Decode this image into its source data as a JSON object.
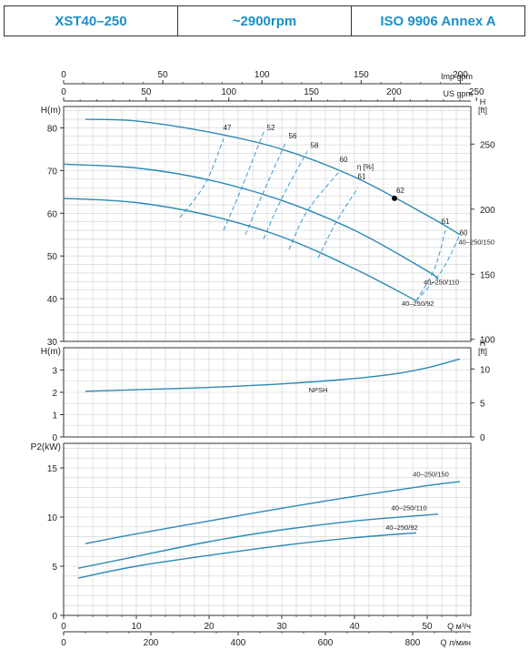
{
  "header": {
    "model": "XST40–250",
    "speed": "~2900rpm",
    "standard": "ISO 9906   Annex A"
  },
  "colors": {
    "curve": "#2a8ab6",
    "efficiency": "#3a9ad0",
    "grid": "#cfcfcf",
    "frame": "#333333",
    "header_text": "#1a8fc8"
  },
  "chart_data": [
    {
      "type": "line",
      "name": "head-curves",
      "ylabel": "H(m)",
      "ylabel_right": "H\n[ft]",
      "ylim": [
        30,
        85
      ],
      "yticks": [
        30,
        40,
        50,
        60,
        70,
        80
      ],
      "yticks_right": [
        100,
        150,
        200,
        250
      ],
      "xlim": [
        0,
        56
      ],
      "top_axes": [
        {
          "label": "Imp gpm",
          "ticks": [
            0,
            50,
            100,
            150,
            200
          ]
        },
        {
          "label": "US gpm",
          "ticks": [
            0,
            50,
            100,
            150,
            200,
            250
          ]
        }
      ],
      "efficiency_label": "η [%]",
      "best_efficiency_point": {
        "x": 45.5,
        "y": 63.5
      },
      "series": [
        {
          "name": "40–250/150",
          "x": [
            3,
            10,
            20,
            30,
            40,
            50,
            54.5
          ],
          "y": [
            82,
            81.6,
            79,
            75,
            68.5,
            59.5,
            55
          ]
        },
        {
          "name": "40–250/110",
          "x": [
            0,
            10,
            20,
            30,
            40,
            50,
            51.5
          ],
          "y": [
            71.5,
            70.6,
            67.8,
            63,
            56,
            46.5,
            44.5
          ]
        },
        {
          "name": "40–250/92",
          "x": [
            0,
            10,
            20,
            30,
            40,
            48.5
          ],
          "y": [
            63.5,
            62.5,
            59.5,
            54.5,
            47,
            39.5
          ]
        }
      ],
      "efficiency_curves": [
        {
          "label": "47",
          "points": [
            [
              16,
              59
            ],
            [
              19.5,
              67
            ],
            [
              22,
              77.5
            ]
          ]
        },
        {
          "label": "52",
          "points": [
            [
              22,
              56
            ],
            [
              24.5,
              66
            ],
            [
              27.5,
              79
            ]
          ]
        },
        {
          "label": "56",
          "points": [
            [
              25,
              55
            ],
            [
              27.5,
              65
            ],
            [
              30.5,
              76.5
            ]
          ]
        },
        {
          "label": "58",
          "points": [
            [
              27.5,
              54
            ],
            [
              30,
              63.5
            ],
            [
              33.5,
              74.5
            ]
          ]
        },
        {
          "label": "60",
          "points": [
            [
              31,
              51.5
            ],
            [
              33.5,
              60.5
            ],
            [
              38,
              70
            ]
          ]
        },
        {
          "label": "61",
          "points": [
            [
              35,
              49.5
            ],
            [
              37.5,
              58
            ],
            [
              40.5,
              66
            ]
          ]
        },
        {
          "label": "61",
          "points": [
            [
              48.5,
              39.5
            ],
            [
              51,
              47
            ],
            [
              52.5,
              56
            ]
          ]
        },
        {
          "label": "60",
          "points": [
            [
              48.5,
              39.5
            ],
            [
              52,
              46.5
            ],
            [
              54.5,
              55
            ]
          ]
        }
      ],
      "efficiency_label_points": [
        {
          "label": "47",
          "x": 22.5,
          "y": 79.5
        },
        {
          "label": "52",
          "x": 28.5,
          "y": 79.5
        },
        {
          "label": "56",
          "x": 31.5,
          "y": 77.5
        },
        {
          "label": "58",
          "x": 34.5,
          "y": 75.3
        },
        {
          "label": "60",
          "x": 38.5,
          "y": 72
        },
        {
          "label": "61",
          "x": 41,
          "y": 68
        },
        {
          "label": "62",
          "x": 46.3,
          "y": 64.7
        },
        {
          "label": "61",
          "x": 52.5,
          "y": 57.5
        },
        {
          "label": "60",
          "x": 55,
          "y": 54.8
        }
      ]
    },
    {
      "type": "line",
      "name": "npsh",
      "ylabel": "H(m)",
      "ylabel_right": "H\n[ft]",
      "ylim": [
        0,
        4
      ],
      "yticks": [
        0,
        1,
        2,
        3
      ],
      "yticks_right": [
        0,
        5,
        10
      ],
      "xlim": [
        0,
        56
      ],
      "series": [
        {
          "name": "NPSH",
          "x": [
            3,
            10,
            20,
            30,
            40,
            46,
            50,
            54.5
          ],
          "y": [
            2.05,
            2.12,
            2.22,
            2.38,
            2.62,
            2.85,
            3.1,
            3.5
          ]
        }
      ]
    },
    {
      "type": "line",
      "name": "power",
      "ylabel": "P2(kW)",
      "ylim": [
        0,
        17.5
      ],
      "yticks": [
        0,
        5,
        10,
        15
      ],
      "xlim": [
        0,
        56
      ],
      "xticks": [
        0,
        10,
        20,
        30,
        40,
        50
      ],
      "xlabel": "Q  м³/ч",
      "xticks2": [
        0,
        200,
        400,
        600,
        800
      ],
      "xlabel2": "Q  л/мин",
      "series": [
        {
          "name": "40–250/150",
          "x": [
            3,
            10,
            20,
            30,
            40,
            50,
            54.5
          ],
          "y": [
            7.3,
            8.3,
            9.6,
            10.9,
            12.1,
            13.2,
            13.6
          ]
        },
        {
          "name": "40–250/110",
          "x": [
            2,
            10,
            20,
            30,
            40,
            48,
            51.5
          ],
          "y": [
            4.8,
            6.0,
            7.5,
            8.7,
            9.6,
            10.1,
            10.3
          ]
        },
        {
          "name": "40–250/92",
          "x": [
            2,
            10,
            20,
            30,
            40,
            48.5
          ],
          "y": [
            3.8,
            5.0,
            6.1,
            7.1,
            7.9,
            8.4
          ]
        }
      ]
    }
  ]
}
